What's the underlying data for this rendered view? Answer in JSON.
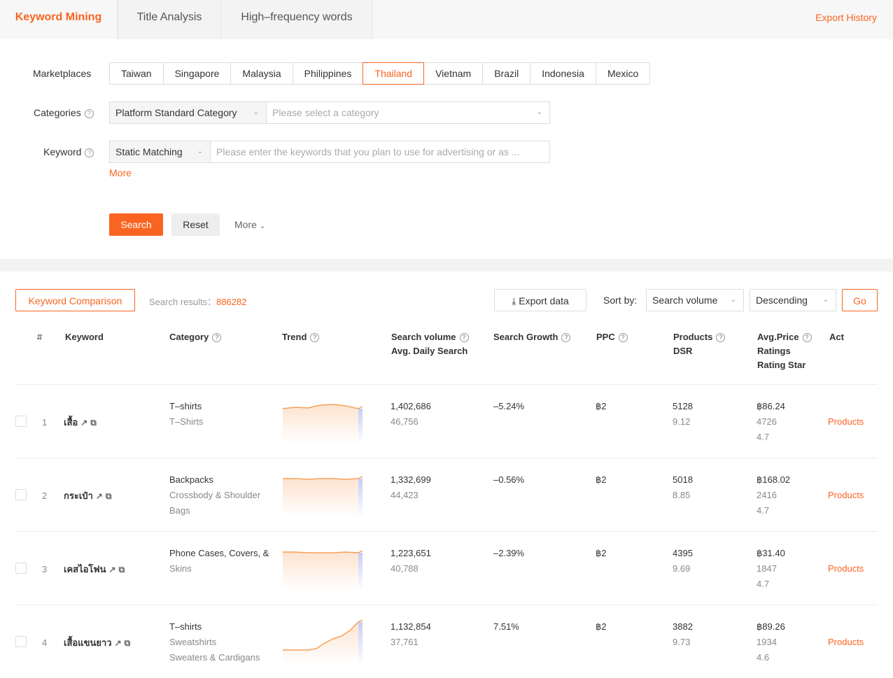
{
  "tabs": [
    {
      "label": "Keyword Mining",
      "active": true
    },
    {
      "label": "Title Analysis"
    },
    {
      "label": "High–frequency words"
    }
  ],
  "export_history": "Export History",
  "filters": {
    "marketplaces_label": "Marketplaces",
    "marketplaces": [
      "Taiwan",
      "Singapore",
      "Malaysia",
      "Philippines",
      "Thailand",
      "Vietnam",
      "Brazil",
      "Indonesia",
      "Mexico"
    ],
    "selected_marketplace": "Thailand",
    "categories_label": "Categories",
    "category_type": "Platform Standard Category",
    "category_placeholder": "Please select a category",
    "keyword_label": "Keyword",
    "match_type": "Static Matching",
    "keyword_placeholder": "Please enter the keywords that you plan to use for advertising or as ...",
    "more_link": "More",
    "search": "Search",
    "reset": "Reset",
    "more": "More"
  },
  "results": {
    "compare": "Keyword Comparison",
    "count_label": "Search results：",
    "count": "886282",
    "export": "Export data",
    "sort_label": "Sort by:",
    "sort_value": "Search volume",
    "order": "Descending",
    "go": "Go"
  },
  "columns": {
    "num": "#",
    "keyword": "Keyword",
    "category": "Category",
    "trend": "Trend",
    "sv1": "Search volume",
    "sv2": "Avg. Daily Search",
    "growth": "Search Growth",
    "ppc": "PPC",
    "p1": "Products",
    "p2": "DSR",
    "a1": "Avg.Price",
    "a2": "Ratings",
    "a3": "Rating Star",
    "act": "Act"
  },
  "accent": "#fa6422",
  "rows": [
    {
      "n": "1",
      "kw": "เสื้อ",
      "cat": [
        "T–shirts",
        "T–Shirts",
        ""
      ],
      "trend": [
        50,
        52,
        51,
        55,
        56,
        54,
        50
      ],
      "sv": "1,402,686",
      "daily": "46,756",
      "growth": "–5.24%",
      "ppc": "฿2",
      "products": "5128",
      "dsr": "9.12",
      "price": "฿86.24",
      "ratings": "4726",
      "star": "4.7",
      "act": "Products"
    },
    {
      "n": "2",
      "kw": "กระเป๋า",
      "cat": [
        "Backpacks",
        "Crossbody & Shoulder",
        "Bags"
      ],
      "trend": [
        55,
        55,
        54,
        55,
        55,
        54,
        55
      ],
      "sv": "1,332,699",
      "daily": "44,423",
      "growth": "–0.56%",
      "ppc": "฿2",
      "products": "5018",
      "dsr": "8.85",
      "price": "฿168.02",
      "ratings": "2416",
      "star": "4.7",
      "act": "Products"
    },
    {
      "n": "3",
      "kw": "เคสไอโฟน",
      "cat": [
        "Phone Cases, Covers, &",
        "Skins",
        ""
      ],
      "trend": [
        55,
        55,
        54,
        54,
        54,
        55,
        54
      ],
      "sv": "1,223,651",
      "daily": "40,788",
      "growth": "–2.39%",
      "ppc": "฿2",
      "products": "4395",
      "dsr": "9.69",
      "price": "฿31.40",
      "ratings": "1847",
      "star": "4.7",
      "act": "Products"
    },
    {
      "n": "4",
      "kw": "เสื้อแขนยาว",
      "cat": [
        "T–shirts",
        "Sweatshirts",
        "Sweaters & Cardigans"
      ],
      "trend": [
        20,
        20,
        20,
        20,
        22,
        30,
        36,
        40,
        48,
        60
      ],
      "sv": "1,132,854",
      "daily": "37,761",
      "growth": "7.51%",
      "ppc": "฿2",
      "products": "3882",
      "dsr": "9.73",
      "price": "฿89.26",
      "ratings": "1934",
      "star": "4.6",
      "act": "Products"
    }
  ]
}
